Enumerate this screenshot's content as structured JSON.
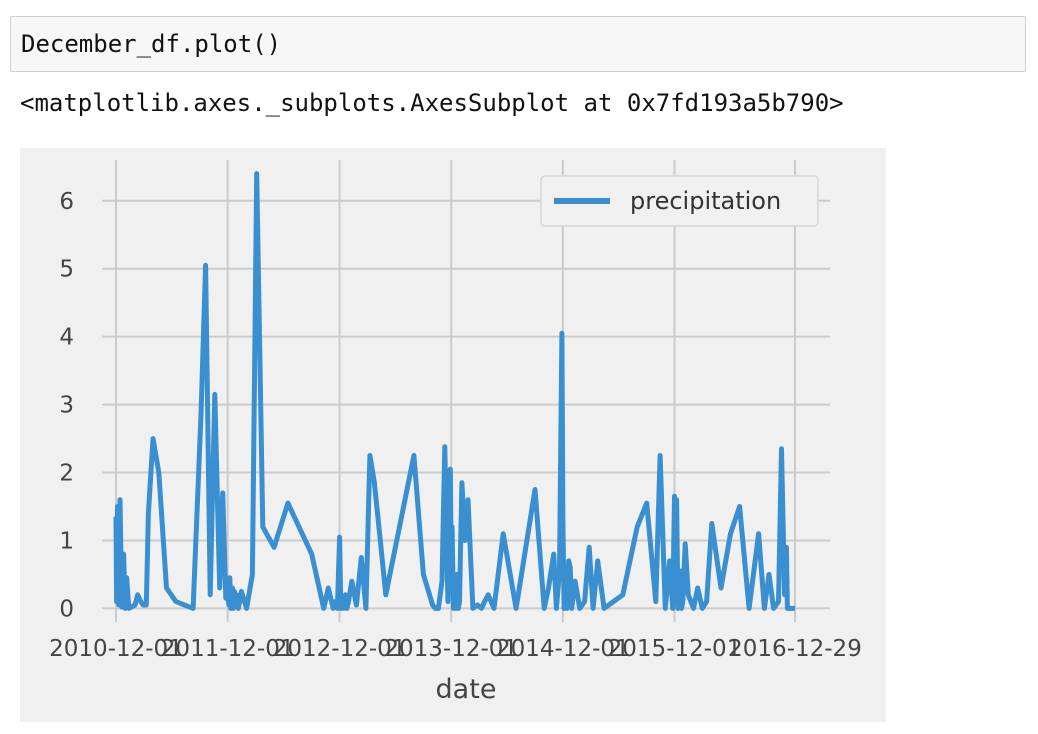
{
  "cell": {
    "code": "December_df.plot()",
    "output_repr": "<matplotlib.axes._subplots.AxesSubplot at 0x7fd193a5b790>"
  },
  "colors": {
    "figure_background": "#f0f0f0",
    "grid": "#cbcbcb",
    "series": "#3a8fd0"
  },
  "chart_data": {
    "type": "line",
    "style": "fivethirtyeight",
    "xlabel": "date",
    "ylabel": "",
    "ylim": [
      -0.2,
      6.6
    ],
    "yticks": [
      0,
      1,
      2,
      3,
      4,
      5,
      6
    ],
    "x_tick_labels": [
      "2010-12-01",
      "2011-12-01",
      "2012-12-01",
      "2013-12-01",
      "2014-12-01",
      "2015-12-01",
      "2016-12-29"
    ],
    "grid": true,
    "legend": {
      "placement": "upper right",
      "entries": [
        "precipitation"
      ]
    },
    "series": [
      {
        "name": "precipitation",
        "x": [
          "2010-12-01",
          "2010-12-03",
          "2010-12-06",
          "2010-12-10",
          "2010-12-14",
          "2010-12-20",
          "2010-12-26",
          "2010-12-31",
          "2011-01-05",
          "2011-01-12",
          "2011-02-01",
          "2011-02-10",
          "2011-02-20",
          "2011-02-28",
          "2011-03-10",
          "2011-03-17",
          "2011-04-01",
          "2011-04-20",
          "2011-05-15",
          "2011-06-15",
          "2011-08-10",
          "2011-09-05",
          "2011-09-20",
          "2011-10-05",
          "2011-10-20",
          "2011-11-05",
          "2011-11-15",
          "2011-11-25",
          "2011-12-01",
          "2011-12-05",
          "2011-12-08",
          "2011-12-11",
          "2011-12-14",
          "2011-12-17",
          "2011-12-20",
          "2011-12-23",
          "2011-12-27",
          "2011-12-30",
          "2012-01-05",
          "2012-01-15",
          "2012-02-01",
          "2012-02-20",
          "2012-03-05",
          "2012-03-25",
          "2012-05-01",
          "2012-06-15",
          "2012-09-01",
          "2012-10-10",
          "2012-10-25",
          "2012-11-10",
          "2012-11-17",
          "2012-11-24",
          "2012-12-01",
          "2012-12-05",
          "2012-12-10",
          "2012-12-15",
          "2012-12-20",
          "2012-12-25",
          "2012-12-30",
          "2013-01-10",
          "2013-01-25",
          "2013-02-10",
          "2013-02-25",
          "2013-03-10",
          "2013-03-25",
          "2013-05-01",
          "2013-08-01",
          "2013-09-01",
          "2013-10-01",
          "2013-10-10",
          "2013-10-20",
          "2013-11-01",
          "2013-11-10",
          "2013-11-20",
          "2013-11-28",
          "2013-12-01",
          "2013-12-04",
          "2013-12-08",
          "2013-12-12",
          "2013-12-16",
          "2013-12-20",
          "2013-12-24",
          "2013-12-28",
          "2014-01-05",
          "2014-01-15",
          "2014-01-25",
          "2014-02-10",
          "2014-02-25",
          "2014-03-10",
          "2014-03-20",
          "2014-04-01",
          "2014-04-20",
          "2014-05-20",
          "2014-07-01",
          "2014-09-01",
          "2014-10-01",
          "2014-10-15",
          "2014-11-01",
          "2014-11-10",
          "2014-11-20",
          "2014-11-28",
          "2014-12-01",
          "2014-12-05",
          "2014-12-10",
          "2014-12-15",
          "2014-12-20",
          "2014-12-25",
          "2014-12-30",
          "2015-01-10",
          "2015-01-25",
          "2015-02-10",
          "2015-02-25",
          "2015-03-10",
          "2015-03-25",
          "2015-04-15",
          "2015-06-15",
          "2015-08-01",
          "2015-09-01",
          "2015-10-01",
          "2015-10-15",
          "2015-11-01",
          "2015-11-15",
          "2015-11-25",
          "2015-12-01",
          "2015-12-04",
          "2015-12-08",
          "2015-12-12",
          "2015-12-16",
          "2015-12-20",
          "2015-12-24",
          "2015-12-28",
          "2016-01-05",
          "2016-01-15",
          "2016-02-01",
          "2016-02-15",
          "2016-03-01",
          "2016-03-15",
          "2016-04-01",
          "2016-05-01",
          "2016-06-01",
          "2016-07-01",
          "2016-08-01",
          "2016-09-01",
          "2016-09-20",
          "2016-10-05",
          "2016-10-20",
          "2016-11-05",
          "2016-11-15",
          "2016-11-25",
          "2016-12-01",
          "2016-12-04",
          "2016-12-08",
          "2016-12-12",
          "2016-12-16",
          "2016-12-20",
          "2016-12-24",
          "2016-12-29"
        ],
        "y": [
          1.35,
          0.1,
          1.5,
          0.05,
          1.6,
          0.02,
          0.8,
          0.0,
          0.45,
          0.0,
          0.05,
          0.2,
          0.1,
          0.05,
          0.05,
          1.4,
          2.5,
          2.0,
          0.3,
          0.1,
          0.0,
          2.85,
          5.05,
          0.2,
          3.15,
          0.3,
          1.7,
          0.15,
          0.2,
          0.05,
          0.45,
          0.0,
          0.1,
          0.3,
          0.0,
          0.25,
          0.05,
          0.2,
          0.0,
          0.25,
          0.0,
          0.5,
          6.4,
          1.2,
          0.9,
          1.55,
          0.8,
          0.0,
          0.3,
          0.0,
          0.1,
          0.0,
          1.05,
          0.0,
          0.05,
          0.0,
          0.2,
          0.0,
          0.1,
          0.4,
          0.05,
          0.75,
          0.0,
          2.25,
          1.85,
          0.2,
          2.25,
          0.5,
          0.05,
          0.0,
          0.0,
          0.4,
          2.38,
          0.1,
          2.05,
          0.8,
          1.2,
          0.0,
          0.4,
          0.0,
          0.5,
          0.0,
          0.1,
          1.85,
          1.0,
          1.6,
          0.0,
          0.05,
          0.0,
          0.1,
          0.2,
          0.0,
          1.1,
          0.0,
          1.75,
          0.0,
          0.3,
          0.8,
          0.0,
          0.55,
          4.05,
          1.3,
          0.0,
          0.1,
          0.0,
          0.7,
          0.6,
          0.0,
          0.4,
          0.0,
          0.1,
          0.9,
          0.0,
          0.7,
          0.0,
          0.2,
          1.2,
          1.55,
          0.1,
          2.25,
          0.0,
          0.7,
          0.0,
          1.65,
          0.2,
          1.6,
          0.0,
          0.4,
          0.55,
          0.0,
          0.1,
          0.95,
          0.2,
          0.0,
          0.3,
          0.0,
          0.1,
          1.25,
          0.3,
          1.1,
          1.5,
          0.0,
          1.1,
          0.0,
          0.5,
          0.0,
          0.1,
          2.35,
          0.2,
          0.9,
          0.0,
          0.0,
          0.0,
          0.0,
          0.0,
          0.0,
          0.0
        ]
      }
    ]
  }
}
